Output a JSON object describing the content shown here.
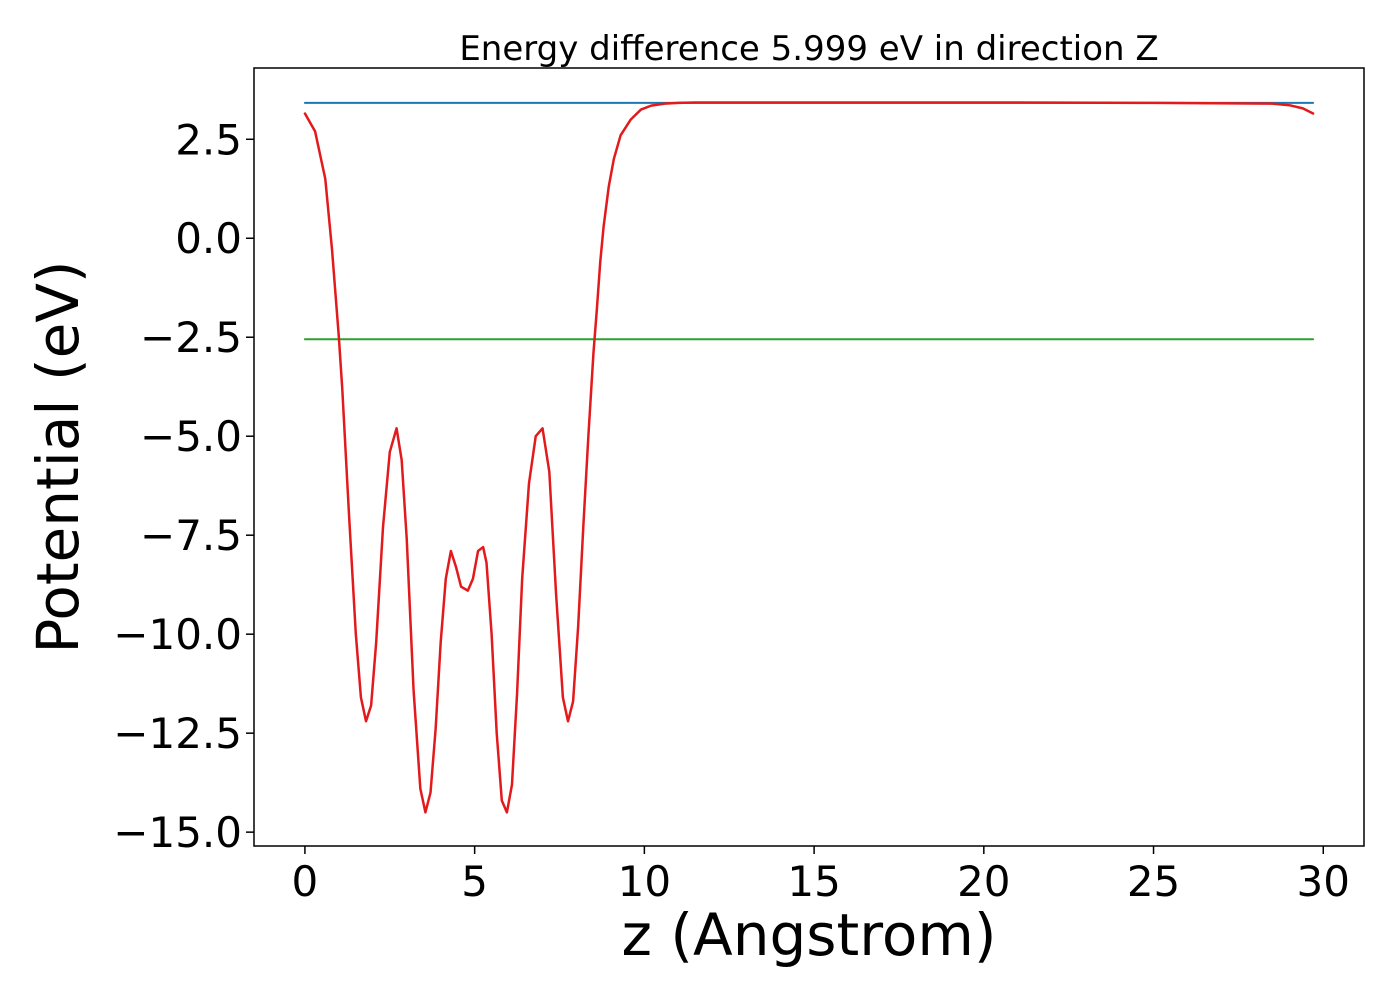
{
  "chart_data": {
    "type": "line",
    "title": "Energy difference 5.999 eV in direction Z",
    "xlabel": "z (Angstrom)",
    "ylabel": "Potential (eV)",
    "xlim": [
      -1.5,
      31.2
    ],
    "ylim": [
      -15.35,
      4.3
    ],
    "xticks": [
      0,
      5,
      10,
      15,
      20,
      25,
      30
    ],
    "yticks": [
      2.5,
      0.0,
      -2.5,
      -5.0,
      -7.5,
      -10.0,
      -12.5,
      -15.0
    ],
    "xtick_labels": [
      "0",
      "5",
      "10",
      "15",
      "20",
      "25",
      "30"
    ],
    "ytick_labels": [
      "2.5",
      "0.0",
      "−2.5",
      "−5.0",
      "−7.5",
      "−10.0",
      "−12.5",
      "−15.0"
    ],
    "grid": false,
    "legend": false,
    "colors": {
      "vacuum": "#1f77b4",
      "fermi": "#2ca02c",
      "potential": "#e31a1c"
    },
    "series": [
      {
        "x": [
          0,
          29.7
        ],
        "y": [
          3.42,
          3.42
        ]
      },
      {
        "x": [
          0,
          29.7
        ],
        "y": [
          -2.55,
          -2.55
        ]
      },
      {
        "x": [
          0,
          0.3,
          0.6,
          0.8,
          0.9,
          1.0,
          1.1,
          1.3,
          1.5,
          1.65,
          1.8,
          1.95,
          2.1,
          2.3,
          2.5,
          2.7,
          2.85,
          3.0,
          3.2,
          3.4,
          3.55,
          3.7,
          3.85,
          4.0,
          4.15,
          4.3,
          4.45,
          4.6,
          4.8,
          4.95,
          5.1,
          5.25,
          5.35,
          5.5,
          5.65,
          5.8,
          5.95,
          6.1,
          6.25,
          6.4,
          6.6,
          6.8,
          7.0,
          7.2,
          7.4,
          7.6,
          7.75,
          7.9,
          8.05,
          8.2,
          8.35,
          8.5,
          8.6,
          8.7,
          8.8,
          8.95,
          9.1,
          9.3,
          9.6,
          9.9,
          10.2,
          10.6,
          11.0,
          11.5,
          12.5,
          15,
          20,
          25,
          28.5,
          29.0,
          29.4,
          29.7
        ],
        "y": [
          3.15,
          2.7,
          1.5,
          -0.3,
          -1.4,
          -2.5,
          -3.8,
          -7.0,
          -10.0,
          -11.6,
          -12.2,
          -11.8,
          -10.2,
          -7.3,
          -5.4,
          -4.8,
          -5.6,
          -7.6,
          -11.4,
          -13.9,
          -14.5,
          -14.0,
          -12.4,
          -10.2,
          -8.6,
          -7.9,
          -8.3,
          -8.8,
          -8.9,
          -8.6,
          -7.9,
          -7.8,
          -8.2,
          -10.0,
          -12.5,
          -14.2,
          -14.5,
          -13.8,
          -11.5,
          -8.6,
          -6.2,
          -5.0,
          -4.8,
          -5.9,
          -9.0,
          -11.6,
          -12.2,
          -11.7,
          -9.8,
          -7.3,
          -5.0,
          -2.9,
          -1.8,
          -0.6,
          0.3,
          1.3,
          2.0,
          2.6,
          3.0,
          3.25,
          3.35,
          3.4,
          3.42,
          3.43,
          3.43,
          3.43,
          3.43,
          3.42,
          3.4,
          3.36,
          3.28,
          3.15
        ]
      }
    ]
  }
}
